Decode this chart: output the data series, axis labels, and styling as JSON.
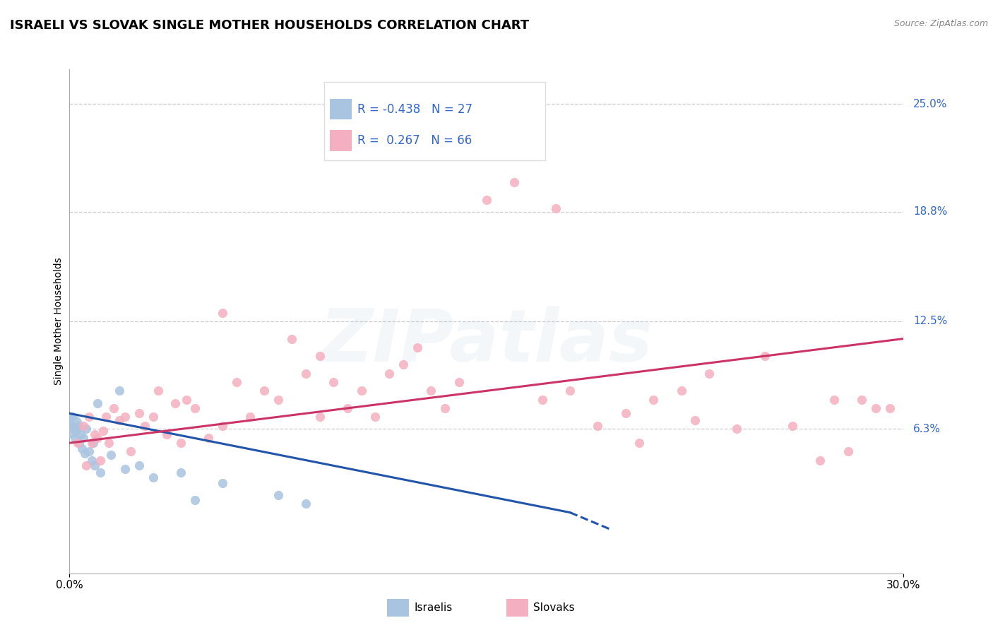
{
  "title": "ISRAELI VS SLOVAK SINGLE MOTHER HOUSEHOLDS CORRELATION CHART",
  "source": "Source: ZipAtlas.com",
  "ylabel": "Single Mother Households",
  "x_min": 0.0,
  "x_max": 30.0,
  "y_min": -2.0,
  "y_max": 27.0,
  "y_ticks": [
    6.3,
    12.5,
    18.8,
    25.0
  ],
  "legend_israeli_R": "-0.438",
  "legend_israeli_N": "27",
  "legend_slovak_R": " 0.267",
  "legend_slovak_N": "66",
  "israeli_color": "#a8c4e0",
  "slovak_color": "#f4b0c0",
  "israeli_line_color": "#2255aa",
  "slovak_line_color": "#cc3366",
  "watermark": "ZIPatlas",
  "israeli_points": [
    [
      0.05,
      6.5
    ],
    [
      0.1,
      7.0
    ],
    [
      0.15,
      6.3
    ],
    [
      0.2,
      5.8
    ],
    [
      0.3,
      6.5
    ],
    [
      0.35,
      5.5
    ],
    [
      0.4,
      6.0
    ],
    [
      0.45,
      5.2
    ],
    [
      0.5,
      5.8
    ],
    [
      0.55,
      4.9
    ],
    [
      0.6,
      6.3
    ],
    [
      0.7,
      5.0
    ],
    [
      0.8,
      4.5
    ],
    [
      0.85,
      5.5
    ],
    [
      0.9,
      4.2
    ],
    [
      1.0,
      7.8
    ],
    [
      1.1,
      3.8
    ],
    [
      1.5,
      4.8
    ],
    [
      1.8,
      8.5
    ],
    [
      2.0,
      4.0
    ],
    [
      2.5,
      4.2
    ],
    [
      3.0,
      3.5
    ],
    [
      4.0,
      3.8
    ],
    [
      5.5,
      3.2
    ],
    [
      7.5,
      2.5
    ],
    [
      4.5,
      2.2
    ],
    [
      8.5,
      2.0
    ]
  ],
  "large_israeli_x": 0.05,
  "large_israeli_y": 6.5,
  "large_israeli_size": 600,
  "slovak_points": [
    [
      0.3,
      5.5
    ],
    [
      0.5,
      6.5
    ],
    [
      0.6,
      4.2
    ],
    [
      0.7,
      7.0
    ],
    [
      0.8,
      5.5
    ],
    [
      0.9,
      6.0
    ],
    [
      1.0,
      5.8
    ],
    [
      1.1,
      4.5
    ],
    [
      1.2,
      6.2
    ],
    [
      1.3,
      7.0
    ],
    [
      1.4,
      5.5
    ],
    [
      1.6,
      7.5
    ],
    [
      1.8,
      6.8
    ],
    [
      2.0,
      7.0
    ],
    [
      2.2,
      5.0
    ],
    [
      2.5,
      7.2
    ],
    [
      2.7,
      6.5
    ],
    [
      3.0,
      7.0
    ],
    [
      3.2,
      8.5
    ],
    [
      3.5,
      6.0
    ],
    [
      3.8,
      7.8
    ],
    [
      4.0,
      5.5
    ],
    [
      4.2,
      8.0
    ],
    [
      4.5,
      7.5
    ],
    [
      5.0,
      5.8
    ],
    [
      5.5,
      6.5
    ],
    [
      5.5,
      13.0
    ],
    [
      6.0,
      9.0
    ],
    [
      6.5,
      7.0
    ],
    [
      7.0,
      8.5
    ],
    [
      7.5,
      8.0
    ],
    [
      8.0,
      11.5
    ],
    [
      8.5,
      9.5
    ],
    [
      9.0,
      7.0
    ],
    [
      9.0,
      10.5
    ],
    [
      9.5,
      9.0
    ],
    [
      10.0,
      7.5
    ],
    [
      10.5,
      8.5
    ],
    [
      11.0,
      7.0
    ],
    [
      11.5,
      9.5
    ],
    [
      12.0,
      10.0
    ],
    [
      12.5,
      11.0
    ],
    [
      13.0,
      8.5
    ],
    [
      13.5,
      7.5
    ],
    [
      14.0,
      9.0
    ],
    [
      15.0,
      19.5
    ],
    [
      16.0,
      20.5
    ],
    [
      17.0,
      8.0
    ],
    [
      17.5,
      19.0
    ],
    [
      18.0,
      8.5
    ],
    [
      19.0,
      6.5
    ],
    [
      20.0,
      7.2
    ],
    [
      20.5,
      5.5
    ],
    [
      21.0,
      8.0
    ],
    [
      22.0,
      8.5
    ],
    [
      22.5,
      6.8
    ],
    [
      23.0,
      9.5
    ],
    [
      24.0,
      6.3
    ],
    [
      25.0,
      10.5
    ],
    [
      26.0,
      6.5
    ],
    [
      27.0,
      4.5
    ],
    [
      27.5,
      8.0
    ],
    [
      28.0,
      5.0
    ],
    [
      28.5,
      8.0
    ],
    [
      29.0,
      7.5
    ],
    [
      29.5,
      7.5
    ]
  ],
  "point_size": 90,
  "israeli_trend": [
    0.0,
    7.2,
    18.0,
    1.5
  ],
  "israeli_trend_dash": [
    18.0,
    1.5,
    19.5,
    0.5
  ],
  "slovak_trend": [
    0.0,
    5.5,
    30.0,
    11.5
  ],
  "grid_color": "#cccccc",
  "title_fontsize": 13,
  "legend_fontsize": 12,
  "tick_fontsize": 11,
  "watermark_alpha": 0.13,
  "source_color": "#888888",
  "ytick_color": "#3366cc",
  "legend_box_color": "#dddddd"
}
